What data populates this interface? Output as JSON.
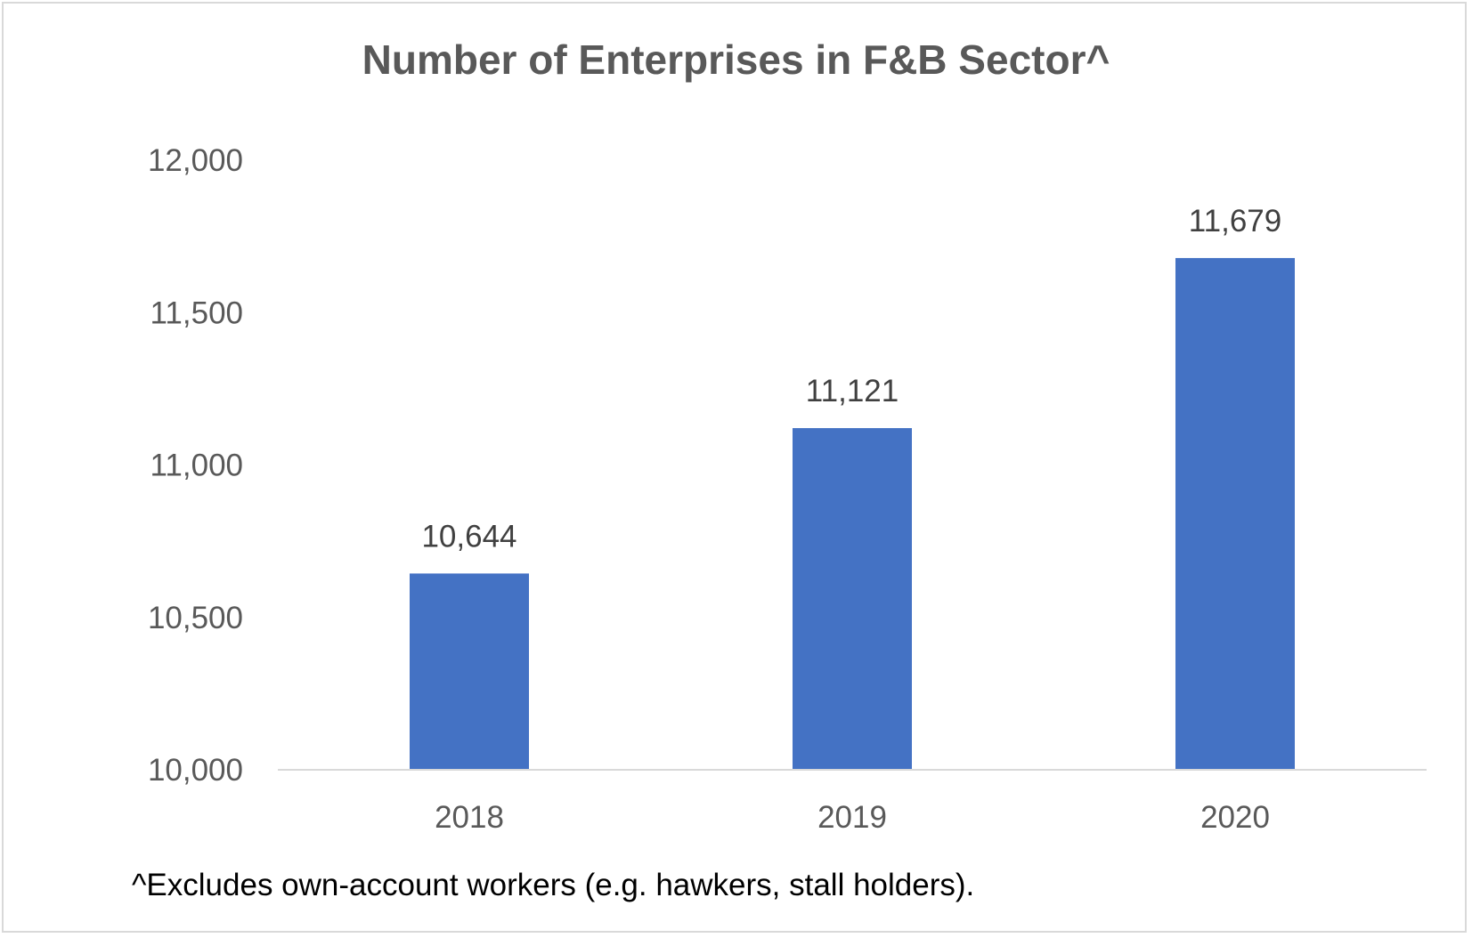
{
  "chart_data": {
    "type": "bar",
    "title": "Number of Enterprises in F&B Sector^",
    "categories": [
      "2018",
      "2019",
      "2020"
    ],
    "values": [
      10644,
      11121,
      11679
    ],
    "data_labels": [
      "10,644",
      "11,121",
      "11,679"
    ],
    "xlabel": "",
    "ylabel": "",
    "ylim": [
      10000,
      12000
    ],
    "y_ticks": [
      10000,
      10500,
      11000,
      11500,
      12000
    ],
    "y_tick_labels": [
      "10,000",
      "10,500",
      "11,000",
      "11,500",
      "12,000"
    ],
    "grid": false,
    "legend": "none",
    "bar_color": "#4472C4",
    "footnote": "^Excludes own-account workers (e.g. hawkers, stall holders)."
  }
}
